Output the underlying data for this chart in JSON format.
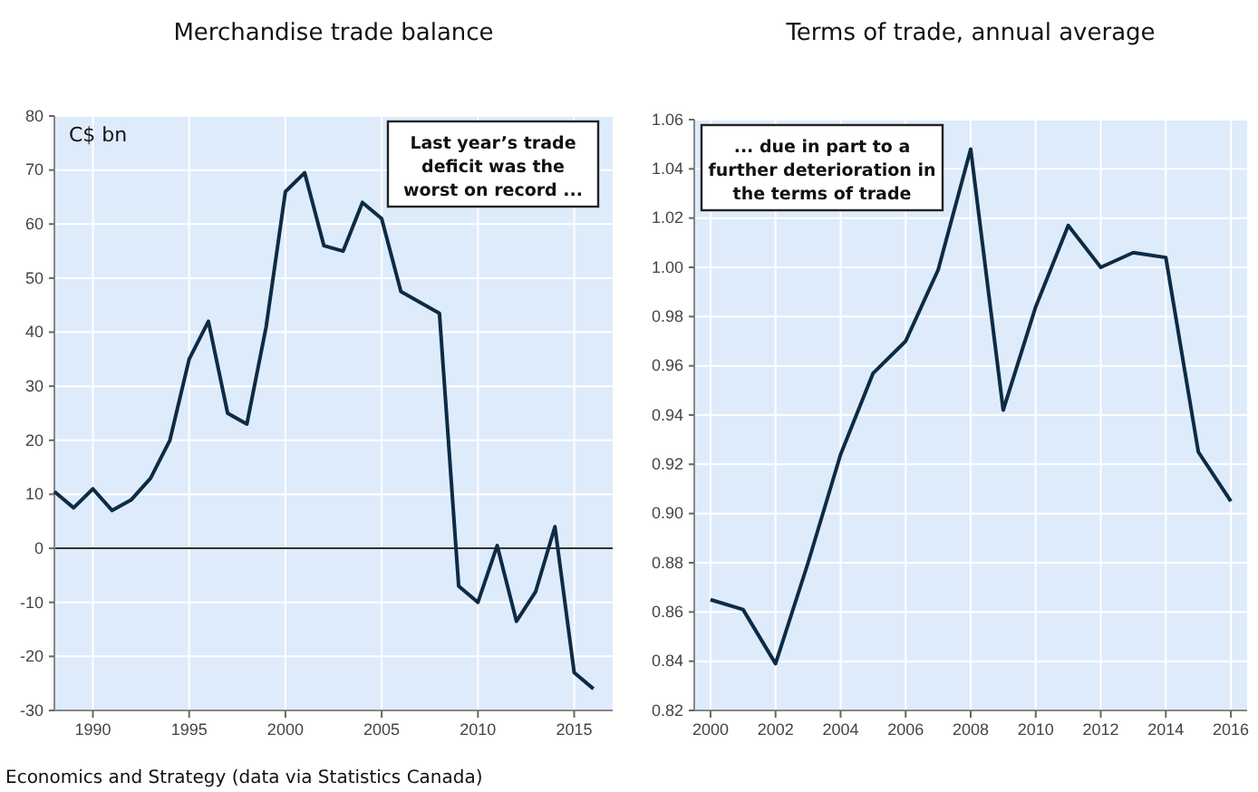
{
  "chart_data": [
    {
      "type": "line",
      "title": "Merchandise trade balance",
      "ylabel": "C$ bn",
      "annotations": [
        "Last year’s trade deficit was the worst on record ...",
        "Economics and Strategy (data via Statistics Canada)"
      ],
      "x": [
        1988,
        1989,
        1990,
        1991,
        1992,
        1993,
        1994,
        1995,
        1996,
        1997,
        1998,
        1999,
        2000,
        2001,
        2002,
        2003,
        2004,
        2005,
        2006,
        2007,
        2008,
        2009,
        2010,
        2011,
        2012,
        2013,
        2014,
        2015,
        2016
      ],
      "series": [
        {
          "color": "#0d2b45",
          "values": [
            10.5,
            7.5,
            11,
            7,
            9,
            13,
            20,
            35,
            42,
            25,
            23,
            41,
            66,
            69.5,
            56,
            55,
            64,
            61,
            47.5,
            45.5,
            43.5,
            -7,
            -10,
            0.5,
            -13.5,
            -8,
            4,
            -23,
            -26
          ]
        }
      ],
      "xlim": [
        1988,
        2017
      ],
      "xticks": [
        1990,
        1995,
        2000,
        2005,
        2010,
        2015
      ],
      "ylim": [
        -30,
        80
      ],
      "yticks": [
        -30,
        -20,
        -10,
        0,
        10,
        20,
        30,
        40,
        50,
        60,
        70,
        80
      ],
      "ref_lines": [
        {
          "axis": "y",
          "value": 0,
          "color": "#333333"
        }
      ],
      "grid": true,
      "line_style": "solid",
      "marker": "none"
    },
    {
      "type": "line",
      "title": "Terms of trade, annual average",
      "annotations": [
        "... due in part to a further deterioration in the terms of trade"
      ],
      "x": [
        2000,
        2001,
        2002,
        2003,
        2004,
        2005,
        2006,
        2007,
        2008,
        2009,
        2010,
        2011,
        2012,
        2013,
        2014,
        2015,
        2016
      ],
      "series": [
        {
          "color": "#0d2b45",
          "values": [
            0.865,
            0.861,
            0.839,
            0.88,
            0.924,
            0.957,
            0.97,
            0.999,
            1.048,
            0.942,
            0.984,
            1.017,
            1.0,
            1.006,
            1.004,
            0.925,
            0.905
          ]
        }
      ],
      "xlim": [
        1999.5,
        2016.5
      ],
      "xticks": [
        2000,
        2002,
        2004,
        2006,
        2008,
        2010,
        2012,
        2014,
        2016
      ],
      "ylim": [
        0.82,
        1.06
      ],
      "yticks": [
        {
          "value": 0.82,
          "label": "0.82"
        },
        {
          "value": 0.84,
          "label": "0.84"
        },
        {
          "value": 0.86,
          "label": "0.86"
        },
        {
          "value": 0.88,
          "label": "0.88"
        },
        {
          "value": 0.9,
          "label": "0.90"
        },
        {
          "value": 0.92,
          "label": "0.92"
        },
        {
          "value": 0.94,
          "label": "0.94"
        },
        {
          "value": 0.96,
          "label": "0.96"
        },
        {
          "value": 0.98,
          "label": "0.98"
        },
        {
          "value": 1.0,
          "label": "1.00"
        },
        {
          "value": 1.02,
          "label": "1.02"
        },
        {
          "value": 1.04,
          "label": "1.04"
        },
        {
          "value": 1.06,
          "label": "1.06"
        }
      ],
      "grid": true,
      "line_style": "solid",
      "marker": "none"
    }
  ]
}
